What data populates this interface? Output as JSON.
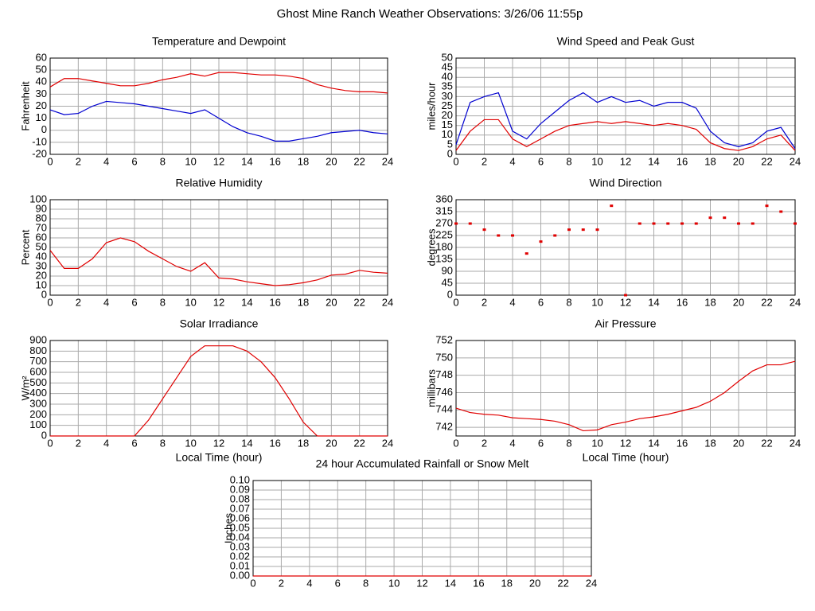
{
  "title": "Ghost Mine Ranch Weather Observations: 3/26/06 11:55p",
  "chart_data": [
    {
      "type": "line",
      "title": "Temperature and Dewpoint",
      "ylabel": "Fahrenheit",
      "x": [
        0,
        1,
        2,
        3,
        4,
        5,
        6,
        7,
        8,
        9,
        10,
        11,
        12,
        13,
        14,
        15,
        16,
        17,
        18,
        19,
        20,
        21,
        22,
        23,
        24
      ],
      "series": [
        {
          "color": "#e00000",
          "values": [
            36,
            43,
            43,
            41,
            39,
            37,
            37,
            39,
            42,
            44,
            47,
            45,
            48,
            48,
            47,
            46,
            46,
            45,
            43,
            38,
            35,
            33,
            32,
            32,
            31
          ]
        },
        {
          "color": "#0000d0",
          "values": [
            17,
            13,
            14,
            20,
            24,
            23,
            22,
            20,
            18,
            16,
            14,
            17,
            10,
            3,
            -2,
            -5,
            -9,
            -9,
            -7,
            -5,
            -2,
            -1,
            0,
            -2,
            -3
          ]
        }
      ],
      "xlim": [
        0,
        24
      ],
      "xticks": [
        0,
        2,
        4,
        6,
        8,
        10,
        12,
        14,
        16,
        18,
        20,
        22,
        24
      ],
      "ylim": [
        -20,
        60
      ],
      "yticks": [
        -20,
        -10,
        0,
        10,
        20,
        30,
        40,
        50,
        60
      ],
      "grid": true
    },
    {
      "type": "line",
      "title": "Wind Speed and Peak Gust",
      "ylabel": "miles/hour",
      "x": [
        0,
        1,
        2,
        3,
        4,
        5,
        6,
        7,
        8,
        9,
        10,
        11,
        12,
        13,
        14,
        15,
        16,
        17,
        18,
        19,
        20,
        21,
        22,
        23,
        24
      ],
      "series": [
        {
          "color": "#0000d0",
          "values": [
            5,
            27,
            30,
            32,
            12,
            8,
            16,
            22,
            28,
            32,
            27,
            30,
            27,
            28,
            25,
            27,
            27,
            24,
            12,
            6,
            4,
            6,
            12,
            14,
            3
          ]
        },
        {
          "color": "#e00000",
          "values": [
            2,
            12,
            18,
            18,
            8,
            4,
            8,
            12,
            15,
            16,
            17,
            16,
            17,
            16,
            15,
            16,
            15,
            13,
            6,
            3,
            2,
            4,
            8,
            10,
            2
          ]
        }
      ],
      "xlim": [
        0,
        24
      ],
      "xticks": [
        0,
        2,
        4,
        6,
        8,
        10,
        12,
        14,
        16,
        18,
        20,
        22,
        24
      ],
      "ylim": [
        0,
        50
      ],
      "yticks": [
        0,
        5,
        10,
        15,
        20,
        25,
        30,
        35,
        40,
        45,
        50
      ],
      "grid": true
    },
    {
      "type": "line",
      "title": "Relative Humidity",
      "ylabel": "Percent",
      "x": [
        0,
        1,
        2,
        3,
        4,
        5,
        6,
        7,
        8,
        9,
        10,
        11,
        12,
        13,
        14,
        15,
        16,
        17,
        18,
        19,
        20,
        21,
        22,
        23,
        24
      ],
      "series": [
        {
          "color": "#e00000",
          "values": [
            47,
            28,
            28,
            38,
            55,
            60,
            56,
            46,
            38,
            30,
            25,
            34,
            18,
            17,
            14,
            12,
            10,
            11,
            13,
            16,
            21,
            22,
            26,
            24,
            23
          ]
        }
      ],
      "xlim": [
        0,
        24
      ],
      "xticks": [
        0,
        2,
        4,
        6,
        8,
        10,
        12,
        14,
        16,
        18,
        20,
        22,
        24
      ],
      "ylim": [
        0,
        100
      ],
      "yticks": [
        0,
        10,
        20,
        30,
        40,
        50,
        60,
        70,
        80,
        90,
        100
      ],
      "grid": true
    },
    {
      "type": "scatter",
      "title": "Wind Direction",
      "ylabel": "degrees",
      "x": [
        0,
        1,
        2,
        3,
        4,
        5,
        6,
        7,
        8,
        9,
        10,
        11,
        12,
        13,
        14,
        15,
        16,
        17,
        18,
        19,
        20,
        21,
        22,
        23,
        24
      ],
      "series": [
        {
          "color": "#e00000",
          "values": [
            270,
            270,
            247,
            225,
            225,
            157,
            202,
            225,
            247,
            247,
            247,
            337,
            0,
            270,
            270,
            270,
            270,
            270,
            292,
            292,
            270,
            270,
            337,
            315,
            270
          ]
        }
      ],
      "xlim": [
        0,
        24
      ],
      "xticks": [
        0,
        2,
        4,
        6,
        8,
        10,
        12,
        14,
        16,
        18,
        20,
        22,
        24
      ],
      "ylim": [
        0,
        360
      ],
      "yticks": [
        0,
        45,
        90,
        135,
        180,
        225,
        270,
        315,
        360
      ],
      "grid": true
    },
    {
      "type": "line",
      "title": "Solar Irradiance",
      "ylabel": "W/m²",
      "xlabel": "Local Time (hour)",
      "x": [
        0,
        1,
        2,
        3,
        4,
        5,
        6,
        7,
        8,
        9,
        10,
        11,
        12,
        13,
        14,
        15,
        16,
        17,
        18,
        19,
        20,
        21,
        22,
        23,
        24
      ],
      "series": [
        {
          "color": "#e00000",
          "values": [
            0,
            0,
            0,
            0,
            0,
            0,
            0,
            150,
            350,
            550,
            750,
            850,
            850,
            850,
            800,
            700,
            550,
            350,
            130,
            0,
            0,
            0,
            0,
            0,
            0
          ]
        }
      ],
      "xlim": [
        0,
        24
      ],
      "xticks": [
        0,
        2,
        4,
        6,
        8,
        10,
        12,
        14,
        16,
        18,
        20,
        22,
        24
      ],
      "ylim": [
        0,
        900
      ],
      "yticks": [
        0,
        100,
        200,
        300,
        400,
        500,
        600,
        700,
        800,
        900
      ],
      "grid": true
    },
    {
      "type": "line",
      "title": "Air Pressure",
      "ylabel": "millibars",
      "xlabel": "Local Time (hour)",
      "x": [
        0,
        1,
        2,
        3,
        4,
        5,
        6,
        7,
        8,
        9,
        10,
        11,
        12,
        13,
        14,
        15,
        16,
        17,
        18,
        19,
        20,
        21,
        22,
        23,
        24
      ],
      "series": [
        {
          "color": "#e00000",
          "values": [
            744.2,
            743.7,
            743.5,
            743.4,
            743.1,
            743.0,
            742.9,
            742.7,
            742.3,
            741.6,
            741.7,
            742.3,
            742.6,
            743.0,
            743.2,
            743.5,
            743.9,
            744.3,
            745.0,
            746.0,
            747.3,
            748.5,
            749.2,
            749.2,
            749.6
          ]
        }
      ],
      "xlim": [
        0,
        24
      ],
      "xticks": [
        0,
        2,
        4,
        6,
        8,
        10,
        12,
        14,
        16,
        18,
        20,
        22,
        24
      ],
      "ylim": [
        741,
        752
      ],
      "yticks": [
        742,
        744,
        746,
        748,
        750,
        752
      ],
      "grid": true
    },
    {
      "type": "line",
      "title": "24 hour Accumulated Rainfall or Snow Melt",
      "ylabel": "Inches",
      "x": [
        0,
        1,
        2,
        3,
        4,
        5,
        6,
        7,
        8,
        9,
        10,
        11,
        12,
        13,
        14,
        15,
        16,
        17,
        18,
        19,
        20,
        21,
        22,
        23,
        24
      ],
      "series": [
        {
          "color": "#e00000",
          "values": [
            0,
            0,
            0,
            0,
            0,
            0,
            0,
            0,
            0,
            0,
            0,
            0,
            0,
            0,
            0,
            0,
            0,
            0,
            0,
            0,
            0,
            0,
            0,
            0,
            0
          ]
        }
      ],
      "xlim": [
        0,
        24
      ],
      "xticks": [
        0,
        2,
        4,
        6,
        8,
        10,
        12,
        14,
        16,
        18,
        20,
        22,
        24
      ],
      "ylim": [
        0,
        0.1
      ],
      "yticks": [
        {
          "value": 0,
          "label": "0.00"
        },
        {
          "value": 0.01,
          "label": "0.01"
        },
        {
          "value": 0.02,
          "label": "0.02"
        },
        {
          "value": 0.03,
          "label": "0.03"
        },
        {
          "value": 0.04,
          "label": "0.04"
        },
        {
          "value": 0.05,
          "label": "0.05"
        },
        {
          "value": 0.06,
          "label": "0.06"
        },
        {
          "value": 0.07,
          "label": "0.07"
        },
        {
          "value": 0.08,
          "label": "0.08"
        },
        {
          "value": 0.09,
          "label": "0.09"
        },
        {
          "value": 0.1,
          "label": "0.10"
        }
      ],
      "grid": true
    }
  ]
}
